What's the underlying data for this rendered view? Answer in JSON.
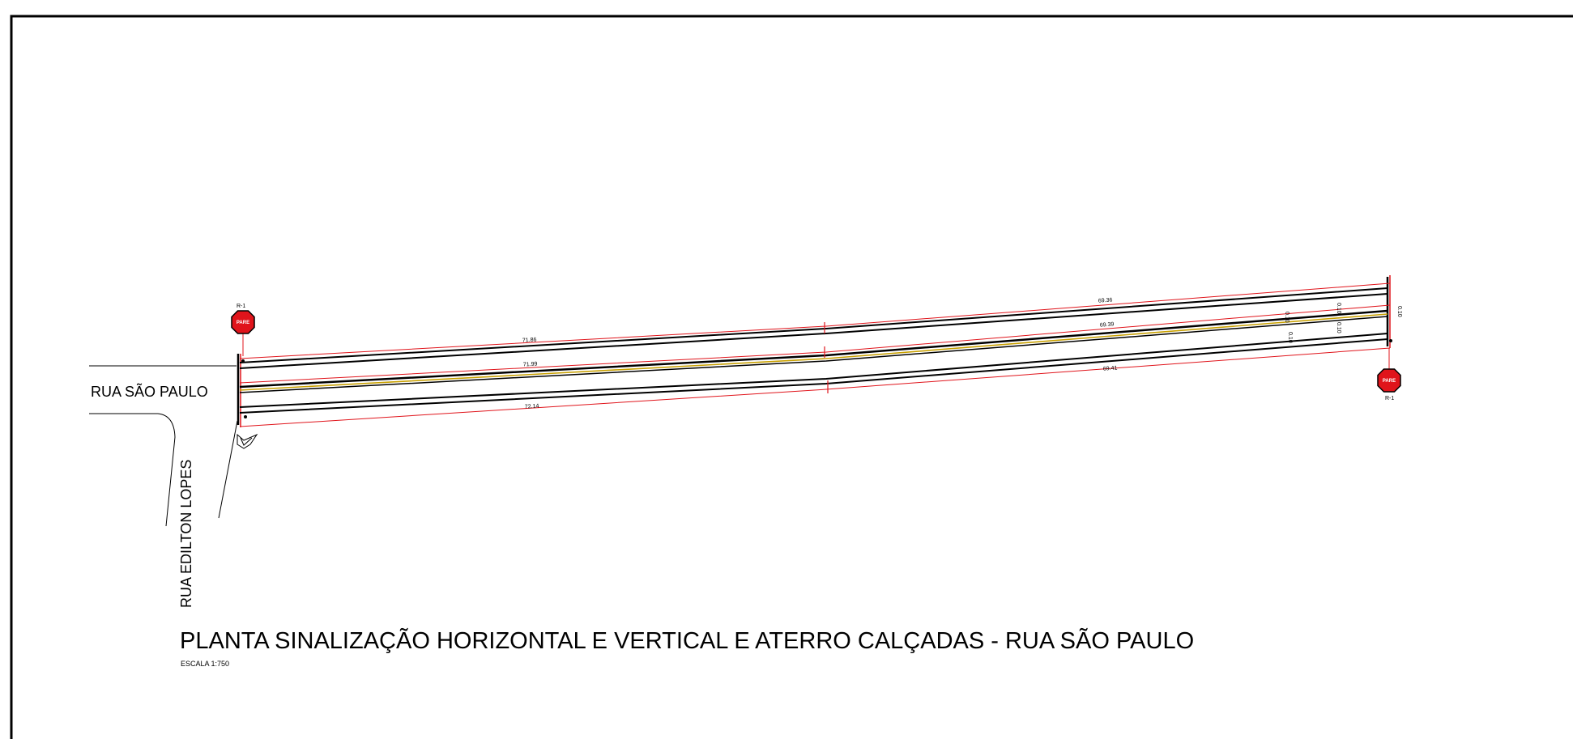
{
  "streets": {
    "main": "RUA SÃO PAULO",
    "cross": "RUA EDILTON LOPES"
  },
  "title": "PLANTA SINALIZAÇÃO HORIZONTAL E VERTICAL E ATERRO CALÇADAS - RUA SÃO PAULO",
  "scale": "ESCALA 1:750",
  "signs": [
    {
      "code": "R-1",
      "text": "PARE"
    },
    {
      "code": "R-1",
      "text": "PARE"
    }
  ],
  "dimensions": {
    "top_left": "71.86",
    "top_right": "69.36",
    "middle_left": "71.99",
    "middle_right": "69.39",
    "bottom_left": "72.14",
    "bottom_right": "69.41",
    "offsets": [
      "0.10",
      "0.10",
      "0.10",
      "0.10",
      "0.10"
    ]
  },
  "colors": {
    "road_line": "#000000",
    "dimension_line": "#e0141b",
    "center_line": "#c8a000",
    "sign_fill": "#e0141b"
  }
}
